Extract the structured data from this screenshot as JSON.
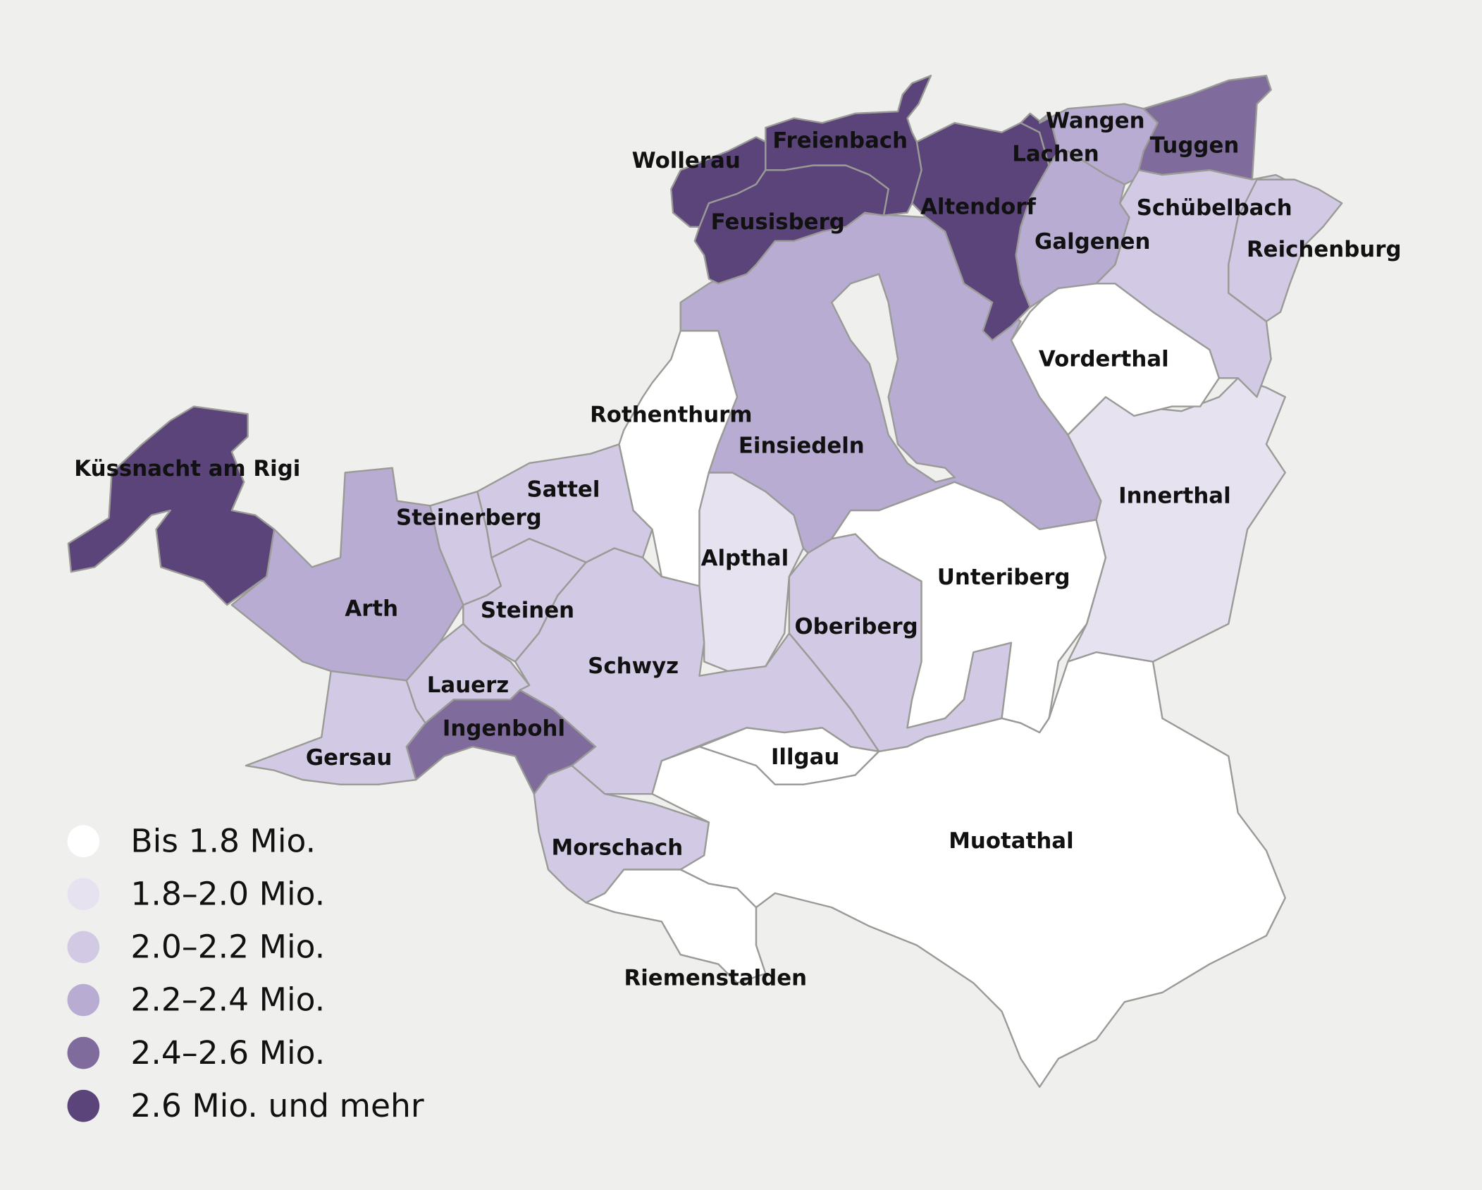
{
  "legend": {
    "items": [
      {
        "label": "Bis 1.8 Mio.",
        "color": "#ffffff"
      },
      {
        "label": "1.8–2.0 Mio.",
        "color": "#e6e2f0"
      },
      {
        "label": "2.0–2.2 Mio.",
        "color": "#d2cae4"
      },
      {
        "label": "2.2–2.4 Mio.",
        "color": "#b8acd3"
      },
      {
        "label": "2.4–2.6 Mio.",
        "color": "#806c9c"
      },
      {
        "label": "2.6 Mio. und mehr",
        "color": "#5b4479"
      }
    ]
  },
  "map": {
    "background": "#efefed",
    "border_color": "#9a9a96",
    "municipalities": [
      {
        "name": "Küssnacht am Rigi",
        "class": 5
      },
      {
        "name": "Arth",
        "class": 3
      },
      {
        "name": "Gersau",
        "class": 2
      },
      {
        "name": "Lauerz",
        "class": 2
      },
      {
        "name": "Ingenbohl",
        "class": 4
      },
      {
        "name": "Morschach",
        "class": 2
      },
      {
        "name": "Steinerberg",
        "class": 2
      },
      {
        "name": "Sattel",
        "class": 2
      },
      {
        "name": "Steinen",
        "class": 2
      },
      {
        "name": "Schwyz",
        "class": 2
      },
      {
        "name": "Rothenthurm",
        "class": 0
      },
      {
        "name": "Alpthal",
        "class": 1
      },
      {
        "name": "Einsiedeln",
        "class": 3
      },
      {
        "name": "Oberiberg",
        "class": 2
      },
      {
        "name": "Unteriberg",
        "class": 0
      },
      {
        "name": "Illgau",
        "class": 0
      },
      {
        "name": "Muotathal",
        "class": 0
      },
      {
        "name": "Riemenstalden",
        "class": 0
      },
      {
        "name": "Innerthal",
        "class": 1
      },
      {
        "name": "Vorderthal",
        "class": 0
      },
      {
        "name": "Altendorf",
        "class": 5
      },
      {
        "name": "Lachen",
        "class": 5
      },
      {
        "name": "Wangen",
        "class": 3
      },
      {
        "name": "Tuggen",
        "class": 4
      },
      {
        "name": "Galgenen",
        "class": 3
      },
      {
        "name": "Schübelbach",
        "class": 2
      },
      {
        "name": "Reichenburg",
        "class": 2
      },
      {
        "name": "Wollerau",
        "class": 5
      },
      {
        "name": "Freienbach",
        "class": 5
      },
      {
        "name": "Feusisberg",
        "class": 5
      }
    ]
  }
}
